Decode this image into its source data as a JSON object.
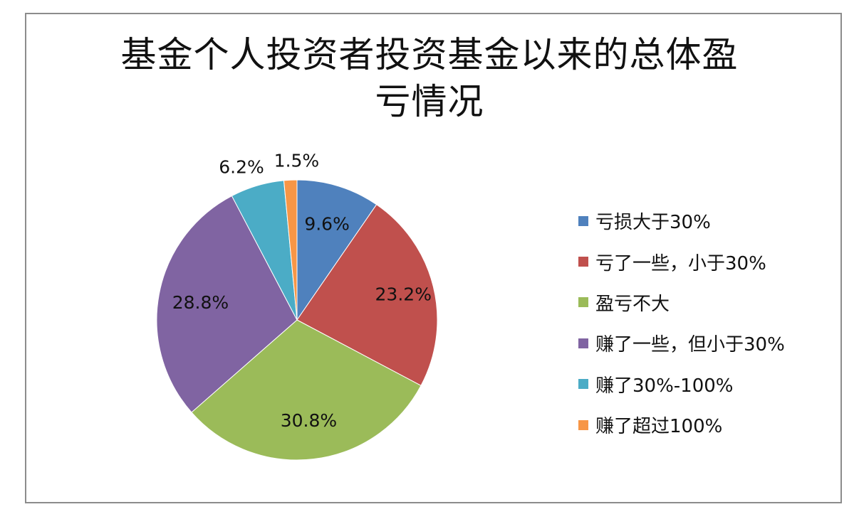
{
  "chart_data": {
    "type": "pie",
    "title_lines": [
      "基金个人投资者投资基金以来的总体盈",
      "亏情况"
    ],
    "slices": [
      {
        "label": "亏损大于30%",
        "value": 9.6,
        "value_label": "9.6%",
        "color": "#4f81bd"
      },
      {
        "label": "亏了一些，小于30%",
        "value": 23.2,
        "value_label": "23.2%",
        "color": "#c0504d"
      },
      {
        "label": "盈亏不大",
        "value": 30.8,
        "value_label": "30.8%",
        "color": "#9bbb59"
      },
      {
        "label": "赚了一些，但小于30%",
        "value": 28.8,
        "value_label": "28.8%",
        "color": "#8064a2"
      },
      {
        "label": "赚了30%-100%",
        "value": 6.2,
        "value_label": "6.2%",
        "color": "#4bacc6"
      },
      {
        "label": "赚了超过100%",
        "value": 1.5,
        "value_label": "1.5%",
        "color": "#f79646"
      }
    ],
    "legend_position": "right"
  }
}
